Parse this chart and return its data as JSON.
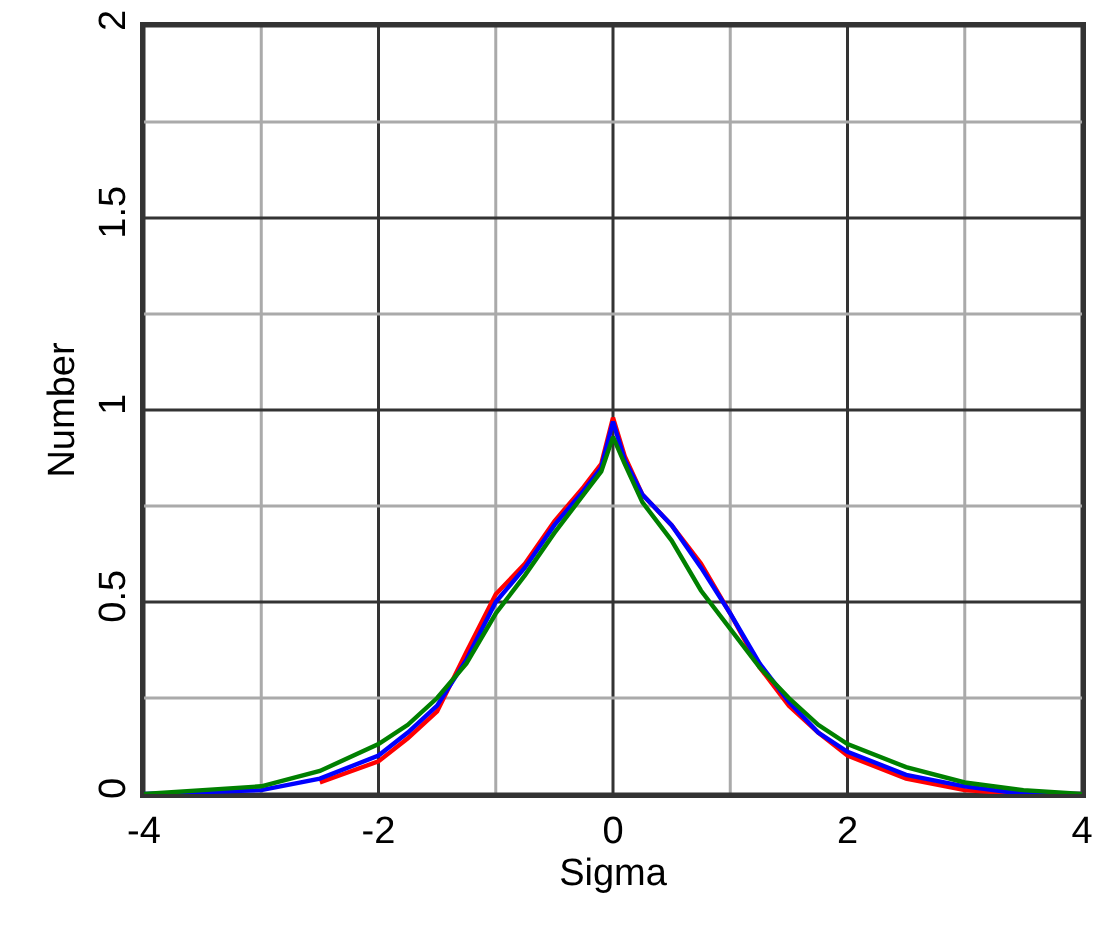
{
  "chart_data": {
    "type": "line",
    "xlabel": "Sigma",
    "ylabel": "Number",
    "x": [
      -4,
      -3.5,
      -3,
      -2.5,
      -2,
      -1.75,
      -1.5,
      -1.25,
      -1,
      -0.75,
      -0.5,
      -0.25,
      -0.1,
      0,
      0.1,
      0.25,
      0.5,
      0.75,
      1,
      1.25,
      1.5,
      1.75,
      2,
      2.5,
      3,
      3.5,
      4
    ],
    "series": [
      {
        "color": "#ff0000",
        "values": [
          null,
          null,
          null,
          0.03,
          0.085,
          0.145,
          0.215,
          0.37,
          0.52,
          0.6,
          0.71,
          0.8,
          0.86,
          0.98,
          0.88,
          0.78,
          0.7,
          0.6,
          0.47,
          0.33,
          0.23,
          0.16,
          0.1,
          0.04,
          0.01,
          0,
          0
        ]
      },
      {
        "color": "#0000ff",
        "values": [
          0,
          0.005,
          0.01,
          0.04,
          0.1,
          0.16,
          0.23,
          0.35,
          0.5,
          0.59,
          0.7,
          0.79,
          0.85,
          0.97,
          0.87,
          0.78,
          0.7,
          0.59,
          0.47,
          0.34,
          0.24,
          0.16,
          0.11,
          0.05,
          0.02,
          0,
          0
        ]
      },
      {
        "color": "#008000",
        "values": [
          0,
          0.01,
          0.02,
          0.06,
          0.13,
          0.18,
          0.25,
          0.34,
          0.47,
          0.57,
          0.68,
          0.78,
          0.84,
          0.93,
          0.86,
          0.76,
          0.66,
          0.53,
          0.43,
          0.33,
          0.25,
          0.18,
          0.13,
          0.07,
          0.03,
          0.01,
          0
        ]
      }
    ],
    "xlim": [
      -4,
      4
    ],
    "xticks": [
      -4,
      {
        "value": -3,
        "label": null
      },
      -2,
      {
        "value": -1,
        "label": null
      },
      0,
      {
        "value": 1,
        "label": null
      },
      2,
      {
        "value": 3,
        "label": null
      },
      4
    ],
    "ylim": [
      0,
      2
    ],
    "yticks": [
      0,
      {
        "value": 0.25,
        "label": null
      },
      0.5,
      {
        "value": 0.75,
        "label": null
      },
      1,
      {
        "value": 1.25,
        "label": null
      },
      1.5,
      {
        "value": 1.75,
        "label": null
      },
      2
    ],
    "grid": true,
    "marker": "none",
    "line_style": "solid"
  }
}
